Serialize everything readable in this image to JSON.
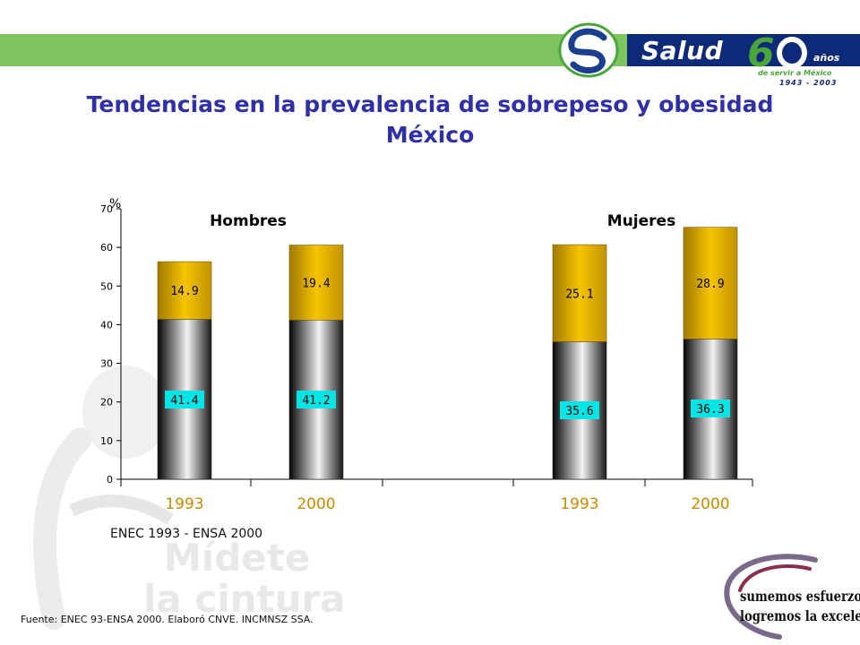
{
  "header": {
    "logo_text": "Salud",
    "logo_years_label": "años",
    "logo_subtitle": "de servir a México",
    "logo_period": "1943 - 2003",
    "title_line1": "Tendencias en la prevalencia de sobrepeso y obesidad",
    "title_line2": "México"
  },
  "watermark": {
    "line1": "Mídete",
    "line2": "la cintura"
  },
  "slogan": {
    "line1": "sumemos esfuerzos.",
    "line2": "logremos la excelencia..."
  },
  "source_note": "ENEC 1993 - ENSA 2000",
  "footnote": "Fuente: ENEC 93-ENSA 2000. Elaboró CNVE. INCMNSZ SSA.",
  "colors": {
    "band_green": "#7dc35f",
    "logo_navy": "#0d2a78",
    "title_blue": "#2f2fa8",
    "bar_top_gold": "#f0b800",
    "label_cyan": "#00e5e5",
    "year_label": "#c88a00"
  },
  "chart_data": {
    "type": "bar",
    "stacked": true,
    "ylabel": "%",
    "ylim": [
      0,
      70
    ],
    "yticks": [
      0,
      10,
      20,
      30,
      40,
      50,
      60,
      70
    ],
    "groups": [
      {
        "name": "Hombres",
        "categories": [
          "1993",
          "2000"
        ]
      },
      {
        "name": "Mujeres",
        "categories": [
          "1993",
          "2000"
        ]
      }
    ],
    "categories": [
      "1993",
      "2000",
      "1993",
      "2000"
    ],
    "series": [
      {
        "values": [
          41.4,
          41.2,
          35.6,
          36.3
        ]
      },
      {
        "values": [
          14.9,
          19.4,
          25.1,
          28.9
        ]
      }
    ],
    "grid": false,
    "legend": "none"
  }
}
